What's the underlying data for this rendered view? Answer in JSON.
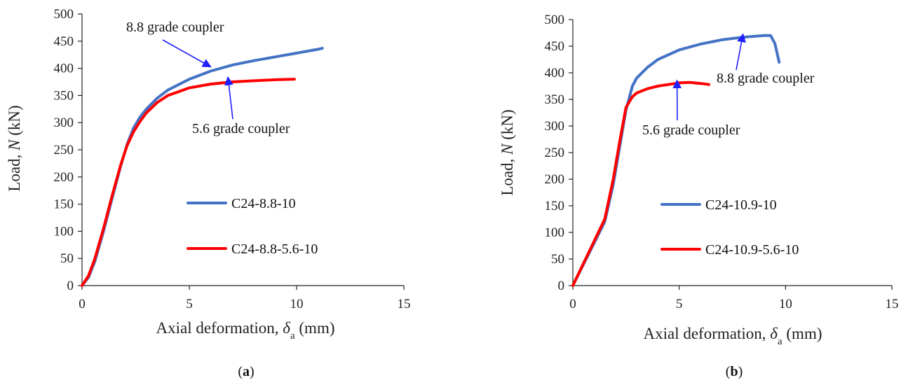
{
  "chart_data": [
    {
      "type": "line",
      "panel_label": "a",
      "xlabel": "Axial deformation, δa (mm)",
      "ylabel": "Load, N (kN)",
      "xlim": [
        0,
        15
      ],
      "ylim": [
        0,
        500
      ],
      "xticks": [
        0,
        5,
        10,
        15
      ],
      "yticks": [
        0,
        50,
        100,
        150,
        200,
        250,
        300,
        350,
        400,
        450,
        500
      ],
      "grid": false,
      "legend_position": "lower-right",
      "series": [
        {
          "name": "C24-8.8-10",
          "color": "#4472C4",
          "x": [
            0,
            0.3,
            0.6,
            1.0,
            1.4,
            1.8,
            2.1,
            2.4,
            2.7,
            3.0,
            3.5,
            4.0,
            5.0,
            6.0,
            7.0,
            8.0,
            9.0,
            10.0,
            11.0,
            11.2
          ],
          "y": [
            0,
            15,
            45,
            100,
            160,
            220,
            260,
            290,
            310,
            325,
            345,
            360,
            380,
            395,
            406,
            414,
            421,
            428,
            435,
            437
          ]
        },
        {
          "name": "C24-8.8-5.6-10",
          "color": "#FF0000",
          "x": [
            0,
            0.3,
            0.6,
            1.0,
            1.4,
            1.8,
            2.1,
            2.4,
            2.7,
            3.0,
            3.5,
            4.0,
            5.0,
            6.0,
            7.0,
            8.0,
            9.0,
            9.9
          ],
          "y": [
            0,
            18,
            50,
            105,
            165,
            222,
            258,
            283,
            302,
            318,
            337,
            350,
            364,
            371,
            375,
            377,
            379,
            380
          ]
        }
      ],
      "annotations": [
        {
          "text": "8.8 grade coupler",
          "arrow_to": [
            6.0,
            395
          ]
        },
        {
          "text": "5.6  grade coupler",
          "arrow_to": [
            6.8,
            376
          ]
        }
      ]
    },
    {
      "type": "line",
      "panel_label": "b",
      "xlabel": "Axial deformation, δa (mm)",
      "ylabel": "Load, N (kN)",
      "xlim": [
        0,
        15
      ],
      "ylim": [
        0,
        500
      ],
      "xticks": [
        0,
        5,
        10,
        15
      ],
      "yticks": [
        0,
        50,
        100,
        150,
        200,
        250,
        300,
        350,
        400,
        450,
        500
      ],
      "grid": false,
      "legend_position": "lower-right",
      "series": [
        {
          "name": "C24-10.9-10",
          "color": "#4472C4",
          "x": [
            0,
            1.5,
            1.9,
            2.2,
            2.5,
            2.8,
            3.0,
            3.5,
            4.0,
            5.0,
            6.0,
            7.0,
            8.0,
            9.0,
            9.3,
            9.5,
            9.7
          ],
          "y": [
            0,
            120,
            190,
            260,
            330,
            375,
            390,
            410,
            425,
            443,
            454,
            462,
            467,
            470,
            470,
            455,
            420
          ]
        },
        {
          "name": "C24-10.9-5.6-10",
          "color": "#FF0000",
          "x": [
            0,
            1.5,
            1.9,
            2.2,
            2.5,
            2.8,
            3.0,
            3.5,
            4.0,
            4.5,
            5.0,
            5.5,
            6.0,
            6.4
          ],
          "y": [
            0,
            125,
            200,
            270,
            335,
            355,
            362,
            370,
            375,
            378,
            381,
            382,
            380,
            378
          ]
        }
      ],
      "annotations": [
        {
          "text": "8.8  grade coupler",
          "arrow_to": [
            8.0,
            465
          ]
        },
        {
          "text": "5.6  grade coupler",
          "arrow_to": [
            4.9,
            378
          ]
        }
      ]
    }
  ]
}
